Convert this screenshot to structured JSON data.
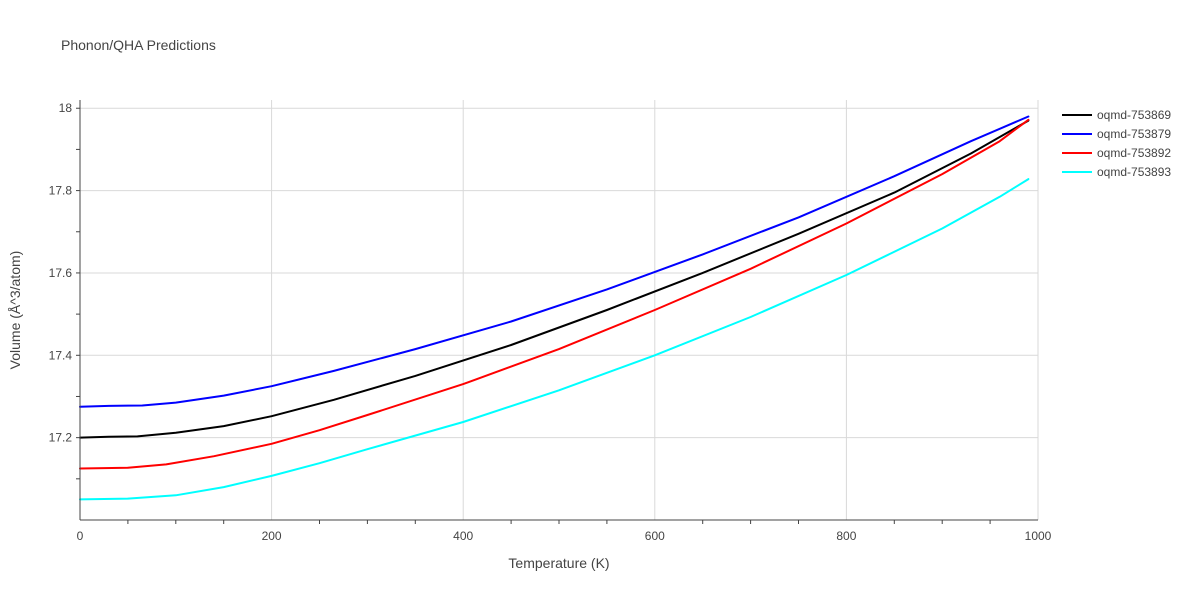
{
  "chart_data": {
    "type": "line",
    "title": "Phonon/QHA Predictions",
    "xlabel": "Temperature (K)",
    "ylabel": "Volume (Å^3/atom)",
    "xlim": [
      0,
      1000
    ],
    "ylim": [
      17.0,
      18.02
    ],
    "xticks": [
      0,
      200,
      400,
      600,
      800,
      1000
    ],
    "yticks": [
      17.2,
      17.4,
      17.6,
      17.8,
      18
    ],
    "xtick_labels": [
      "0",
      "200",
      "400",
      "600",
      "800",
      "1000"
    ],
    "ytick_labels": [
      "17.2",
      "17.4",
      "17.6",
      "17.8",
      "18"
    ],
    "grid": true,
    "legend_position": "top-right",
    "series": [
      {
        "name": "oqmd-753869",
        "color": "#000000",
        "x": [
          0,
          30,
          60,
          100,
          150,
          200,
          265,
          350,
          450,
          550,
          650,
          750,
          850,
          930,
          990
        ],
        "y": [
          17.2,
          17.202,
          17.203,
          17.212,
          17.228,
          17.252,
          17.292,
          17.35,
          17.425,
          17.51,
          17.6,
          17.695,
          17.795,
          17.89,
          17.97
        ]
      },
      {
        "name": "oqmd-753879",
        "color": "#0000ff",
        "x": [
          0,
          30,
          65,
          100,
          150,
          200,
          265,
          350,
          450,
          550,
          650,
          750,
          850,
          930,
          990
        ],
        "y": [
          17.275,
          17.277,
          17.278,
          17.285,
          17.302,
          17.325,
          17.362,
          17.415,
          17.482,
          17.56,
          17.645,
          17.735,
          17.835,
          17.92,
          17.98
        ]
      },
      {
        "name": "oqmd-753892",
        "color": "#ff0000",
        "x": [
          0,
          50,
          90,
          140,
          200,
          250,
          300,
          400,
          500,
          600,
          700,
          800,
          900,
          960,
          990
        ],
        "y": [
          17.125,
          17.127,
          17.135,
          17.155,
          17.185,
          17.218,
          17.255,
          17.33,
          17.415,
          17.51,
          17.61,
          17.72,
          17.84,
          17.92,
          17.972
        ]
      },
      {
        "name": "oqmd-753893",
        "color": "#00ffff",
        "x": [
          0,
          50,
          100,
          150,
          200,
          250,
          300,
          400,
          500,
          600,
          700,
          800,
          900,
          960,
          990
        ],
        "y": [
          17.05,
          17.052,
          17.06,
          17.08,
          17.107,
          17.138,
          17.172,
          17.238,
          17.315,
          17.4,
          17.493,
          17.595,
          17.708,
          17.785,
          17.828
        ]
      }
    ]
  }
}
